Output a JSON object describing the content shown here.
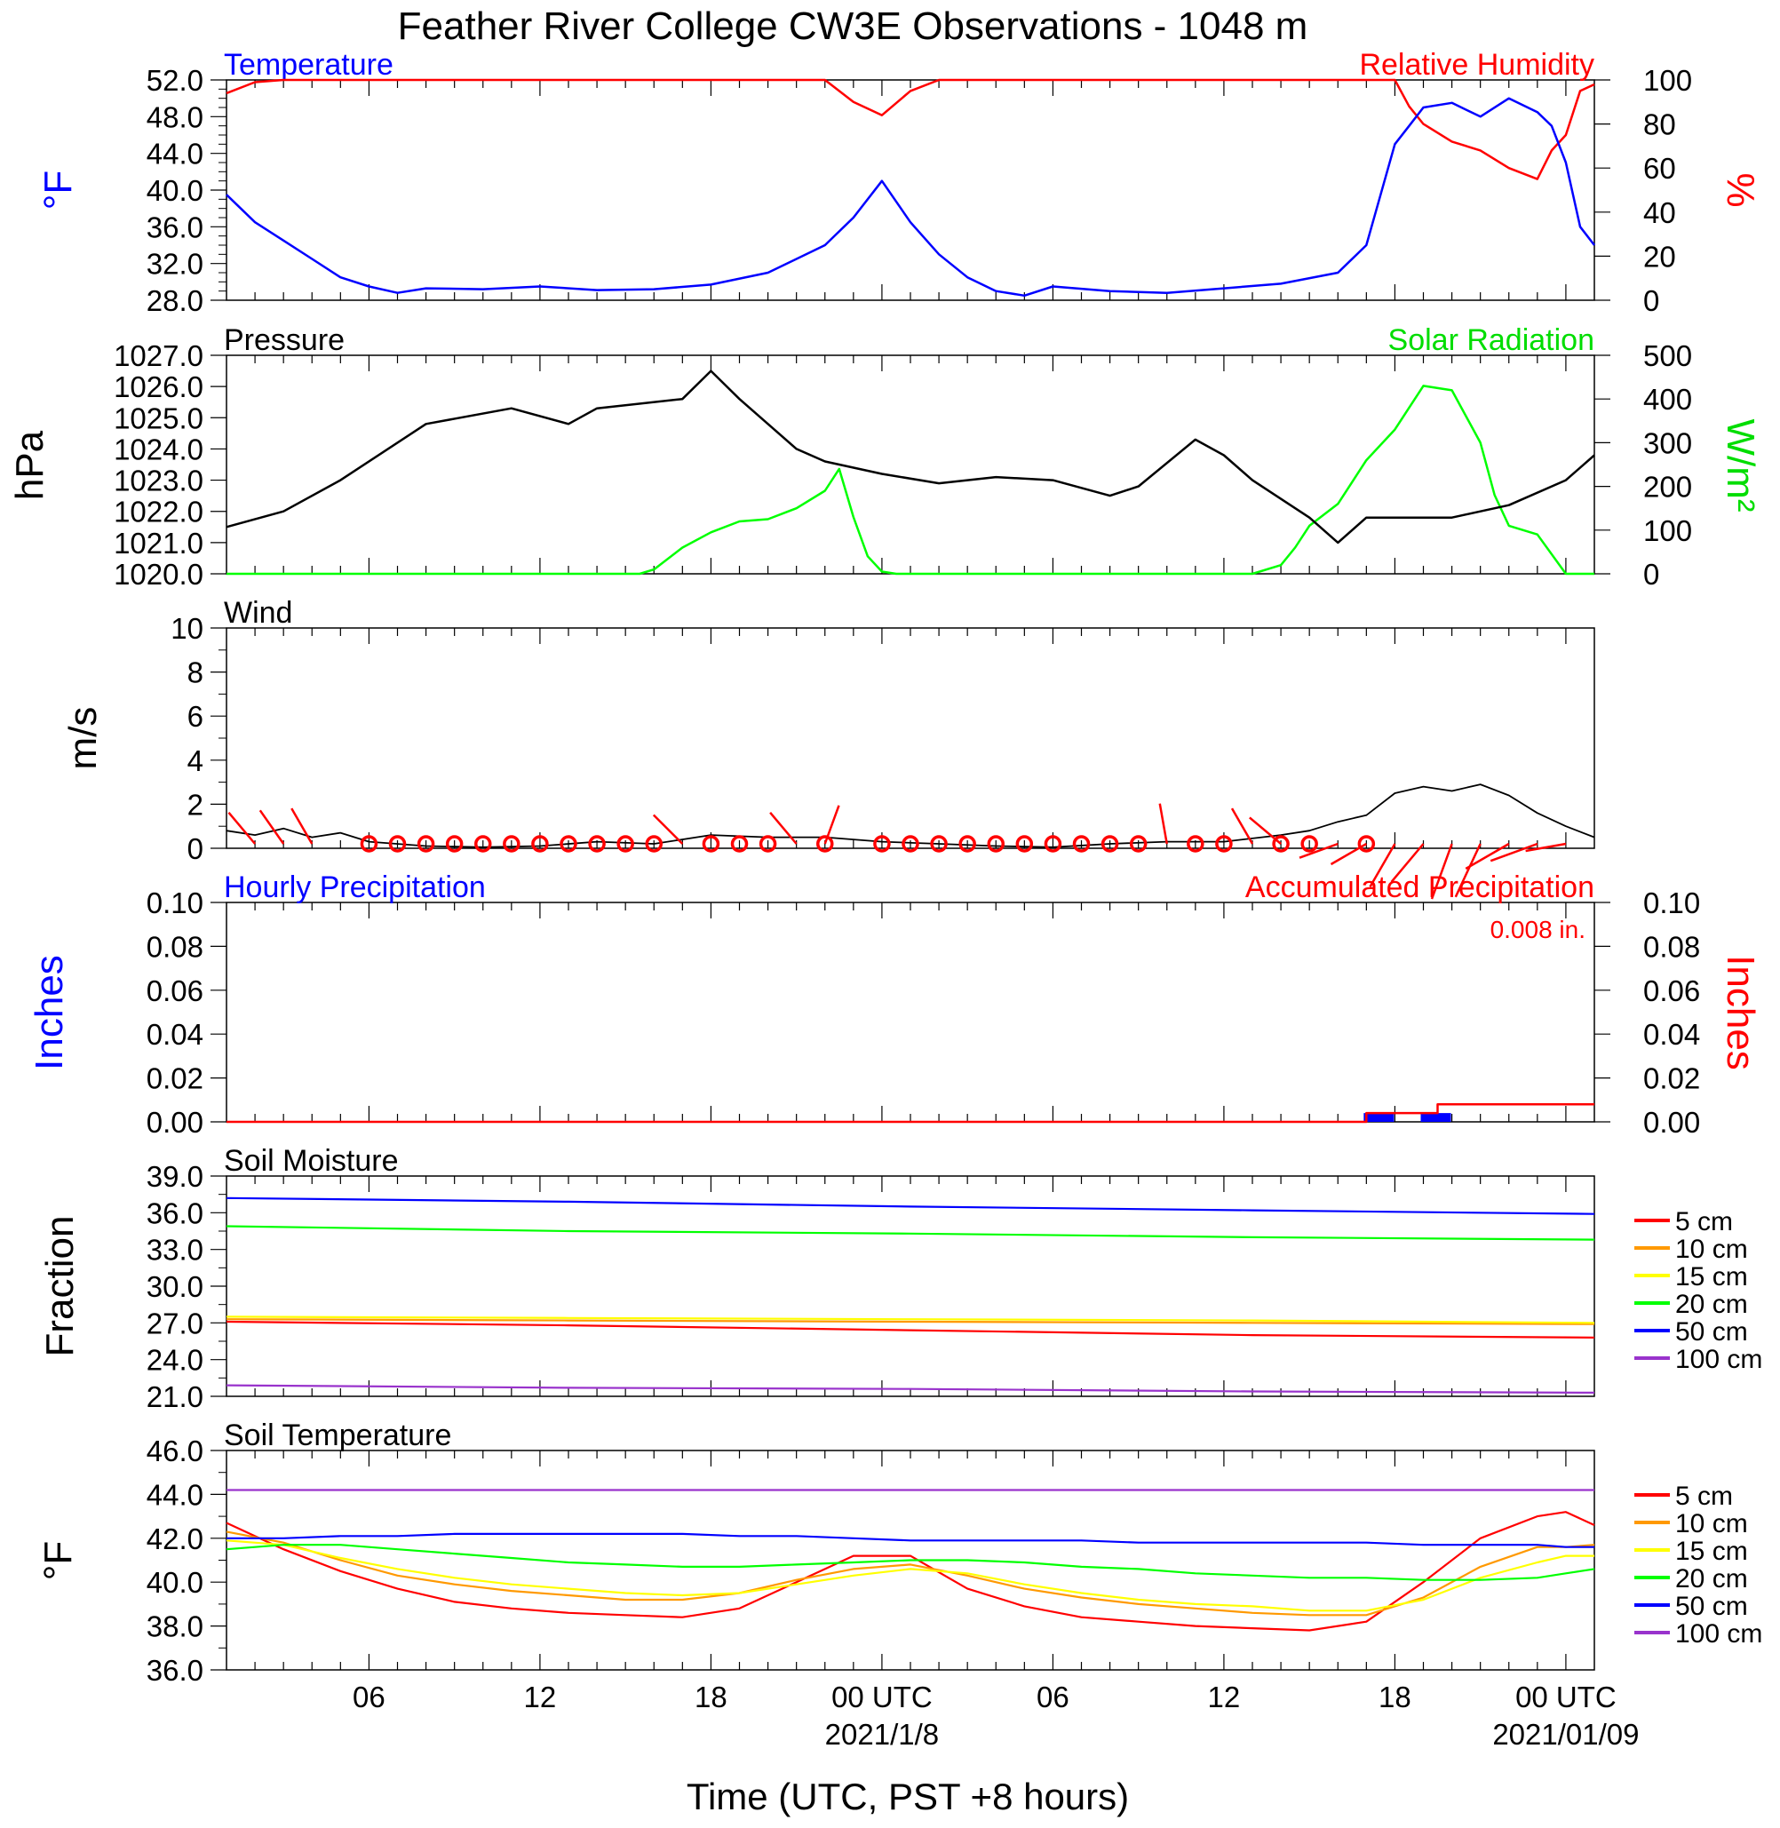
{
  "title": "Feather River College CW3E Observations - 1048 m",
  "x_axis": {
    "label": "Time (UTC, PST +8 hours)",
    "ticks": [
      "06",
      "12",
      "18",
      "00 UTC",
      "06",
      "12",
      "18",
      "00 UTC"
    ],
    "dates": [
      "2021/1/8",
      "2021/01/09"
    ]
  },
  "chart_data": [
    {
      "type": "line",
      "name_left": "Temperature",
      "name_right": "Relative Humidity",
      "ylabel_left": "°F",
      "ylabel_right": "%",
      "ylim_left": [
        28,
        52
      ],
      "ylim_right": [
        0,
        100
      ],
      "yticks_left": [
        "28.0",
        "32.0",
        "36.0",
        "40.0",
        "44.0",
        "48.0",
        "52.0"
      ],
      "yticks_right": [
        "0",
        "20",
        "40",
        "60",
        "80",
        "100"
      ],
      "x_hours": [
        1,
        2,
        3,
        4,
        5,
        6,
        7,
        8,
        10,
        12,
        14,
        16,
        18,
        20,
        22,
        23,
        24,
        25,
        26,
        27,
        28,
        29,
        30,
        32,
        34,
        36,
        38,
        40,
        41,
        42,
        42.5,
        43,
        44,
        45,
        46,
        47,
        47.5,
        48,
        48.5,
        49
      ],
      "series": [
        {
          "name": "Temperature",
          "color": "#0000ff",
          "axis": "left",
          "values": [
            39.5,
            36.5,
            34.5,
            32.5,
            30.5,
            29.5,
            28.8,
            29.3,
            29.2,
            29.5,
            29.1,
            29.2,
            29.7,
            31.0,
            34.0,
            37.0,
            41.0,
            36.5,
            33.0,
            30.5,
            29.0,
            28.5,
            29.5,
            29.0,
            28.8,
            29.3,
            29.8,
            31.0,
            34.0,
            45.0,
            47.0,
            49.0,
            49.5,
            48.0,
            50.0,
            48.5,
            47.0,
            43.0,
            36.0,
            34.0
          ]
        },
        {
          "name": "Relative Humidity",
          "color": "#ff0000",
          "axis": "right",
          "values": [
            94,
            99,
            100,
            100,
            100,
            100,
            100,
            100,
            100,
            100,
            100,
            100,
            100,
            100,
            100,
            90,
            84,
            95,
            100,
            100,
            100,
            100,
            100,
            100,
            100,
            100,
            100,
            100,
            100,
            100,
            88,
            80,
            72,
            68,
            60,
            55,
            68,
            75,
            95,
            98
          ]
        }
      ]
    },
    {
      "type": "line",
      "name_left": "Pressure",
      "name_right": "Solar Radiation",
      "ylabel_left": "hPa",
      "ylabel_right": "W/m²",
      "ylim_left": [
        1020,
        1027
      ],
      "ylim_right": [
        0,
        500
      ],
      "yticks_left": [
        "1020.0",
        "1021.0",
        "1022.0",
        "1023.0",
        "1024.0",
        "1025.0",
        "1026.0",
        "1027.0"
      ],
      "yticks_right": [
        "0",
        "100",
        "200",
        "300",
        "400",
        "500"
      ],
      "x_hours": [
        1,
        3,
        5,
        8,
        11,
        13,
        14,
        17,
        18,
        19,
        20,
        21,
        22,
        24,
        26,
        28,
        30,
        32,
        33,
        35,
        36,
        37,
        39,
        40,
        41,
        42,
        44,
        46,
        48,
        49
      ],
      "series": [
        {
          "name": "Pressure",
          "color": "#000000",
          "axis": "left",
          "values": [
            1021.5,
            1022.0,
            1023.0,
            1024.8,
            1025.3,
            1024.8,
            1025.3,
            1025.6,
            1026.5,
            1025.6,
            1024.8,
            1024.0,
            1023.6,
            1023.2,
            1022.9,
            1023.1,
            1023.0,
            1022.5,
            1022.8,
            1024.3,
            1023.8,
            1023.0,
            1021.8,
            1021.0,
            1021.8,
            1021.8,
            1021.8,
            1022.2,
            1023.0,
            1023.8
          ]
        },
        {
          "name": "Solar Radiation",
          "color": "#00ff00",
          "axis": "right",
          "x_hours": [
            1,
            15.5,
            16,
            17,
            18,
            19,
            20,
            21,
            22,
            22.5,
            23,
            23.5,
            24,
            24.5,
            37,
            38,
            38.5,
            39,
            40,
            41,
            42,
            43,
            44,
            45,
            45.5,
            46,
            47,
            48,
            49
          ],
          "values": [
            0,
            0,
            10,
            60,
            95,
            120,
            125,
            150,
            190,
            240,
            130,
            40,
            5,
            0,
            0,
            20,
            60,
            110,
            160,
            260,
            330,
            430,
            420,
            300,
            180,
            110,
            90,
            0,
            0
          ]
        }
      ]
    },
    {
      "type": "line",
      "name": "Wind",
      "ylabel": "m/s",
      "ylim": [
        0,
        10
      ],
      "yticks": [
        "0",
        "2",
        "4",
        "6",
        "8",
        "10"
      ],
      "x_hours": [
        1,
        2,
        3,
        4,
        5,
        6,
        8,
        10,
        12,
        14,
        16,
        18,
        20,
        22,
        24,
        26,
        28,
        30,
        32,
        34,
        36,
        38,
        39,
        40,
        41,
        42,
        43,
        44,
        45,
        46,
        47,
        48,
        49
      ],
      "series": [
        {
          "name": "Wind Speed",
          "color": "#000000",
          "values": [
            0.8,
            0.6,
            0.9,
            0.5,
            0.7,
            0.3,
            0.1,
            0.05,
            0.1,
            0.3,
            0.2,
            0.6,
            0.5,
            0.5,
            0.3,
            0.2,
            0.1,
            0.05,
            0.2,
            0.3,
            0.3,
            0.6,
            0.8,
            1.2,
            1.5,
            2.5,
            2.8,
            2.6,
            2.9,
            2.4,
            1.6,
            1.0,
            0.5
          ]
        }
      ],
      "barbs": {
        "color": "#ff0000",
        "calm_hours": [
          6,
          7,
          8,
          9,
          10,
          11,
          12,
          13,
          14,
          15,
          16,
          18,
          19,
          20,
          22,
          24,
          25,
          26,
          27,
          28,
          29,
          30,
          31,
          32,
          33,
          35,
          36,
          38,
          39,
          41
        ],
        "staff_hours": [
          2,
          3,
          4,
          17,
          21,
          22,
          34,
          37,
          38,
          40,
          41,
          42,
          43,
          44,
          45,
          46,
          47,
          48
        ],
        "staff_speeds": [
          1,
          1,
          1,
          1,
          1,
          1,
          1,
          1,
          1,
          1,
          1,
          2,
          2,
          3,
          3,
          2,
          2,
          1
        ],
        "staff_dirs": [
          -40,
          -35,
          -30,
          -45,
          -40,
          20,
          -10,
          -30,
          -50,
          -110,
          -120,
          -150,
          -140,
          -160,
          -155,
          -120,
          -110,
          -100
        ]
      }
    },
    {
      "type": "bar",
      "name_left": "Hourly Precipitation",
      "name_right": "Accumulated Precipitation",
      "annotation": "0.008 in.",
      "ylabel_left": "Inches",
      "ylabel_right": "Inches",
      "ylim": [
        0,
        0.1
      ],
      "yticks": [
        "0.00",
        "0.02",
        "0.04",
        "0.06",
        "0.08",
        "0.10"
      ],
      "hourly": {
        "color": "#0000ff",
        "x_hours": [
          41,
          43
        ],
        "values": [
          0.004,
          0.004
        ]
      },
      "accumulated": {
        "color": "#ff0000",
        "x_hours": [
          1,
          41,
          41,
          43.5,
          43.5,
          49
        ],
        "values": [
          0,
          0,
          0.004,
          0.004,
          0.008,
          0.008
        ]
      }
    },
    {
      "type": "line",
      "name": "Soil Moisture",
      "ylabel": "Fraction",
      "ylim": [
        21,
        39
      ],
      "yticks": [
        "21.0",
        "24.0",
        "27.0",
        "30.0",
        "33.0",
        "36.0",
        "39.0"
      ],
      "x_hours": [
        1,
        13,
        25,
        37,
        49
      ],
      "series": [
        {
          "name": "5 cm",
          "color": "#ff0000",
          "values": [
            27.1,
            26.8,
            26.4,
            26.0,
            25.8
          ]
        },
        {
          "name": "10 cm",
          "color": "#ff9900",
          "values": [
            27.3,
            27.2,
            27.1,
            27.0,
            26.9
          ]
        },
        {
          "name": "15 cm",
          "color": "#ffff00",
          "values": [
            27.5,
            27.4,
            27.3,
            27.2,
            27.0
          ]
        },
        {
          "name": "20 cm",
          "color": "#00ff00",
          "values": [
            34.9,
            34.5,
            34.3,
            34.0,
            33.8
          ]
        },
        {
          "name": "50 cm",
          "color": "#0000ff",
          "values": [
            37.2,
            36.9,
            36.5,
            36.2,
            35.9
          ]
        },
        {
          "name": "100 cm",
          "color": "#9933cc",
          "values": [
            21.9,
            21.7,
            21.6,
            21.4,
            21.3
          ]
        }
      ]
    },
    {
      "type": "line",
      "name": "Soil Temperature",
      "ylabel": "°F",
      "ylim": [
        36,
        46
      ],
      "yticks": [
        "36.0",
        "38.0",
        "40.0",
        "42.0",
        "44.0",
        "46.0"
      ],
      "x_hours": [
        1,
        3,
        5,
        7,
        9,
        11,
        13,
        15,
        17,
        19,
        21,
        23,
        25,
        27,
        29,
        31,
        33,
        35,
        37,
        39,
        41,
        43,
        45,
        47,
        48,
        49
      ],
      "series": [
        {
          "name": "5 cm",
          "color": "#ff0000",
          "values": [
            42.7,
            41.5,
            40.5,
            39.7,
            39.1,
            38.8,
            38.6,
            38.5,
            38.4,
            38.8,
            40.0,
            41.2,
            41.2,
            39.7,
            38.9,
            38.4,
            38.2,
            38.0,
            37.9,
            37.8,
            38.2,
            40.0,
            42.0,
            43.0,
            43.2,
            42.6
          ]
        },
        {
          "name": "10 cm",
          "color": "#ff9900",
          "values": [
            42.3,
            41.8,
            41.0,
            40.3,
            39.9,
            39.6,
            39.4,
            39.2,
            39.2,
            39.5,
            40.1,
            40.6,
            40.8,
            40.3,
            39.7,
            39.3,
            39.0,
            38.8,
            38.6,
            38.5,
            38.5,
            39.3,
            40.7,
            41.6,
            41.6,
            41.7
          ]
        },
        {
          "name": "15 cm",
          "color": "#ffff00",
          "values": [
            41.9,
            41.7,
            41.1,
            40.6,
            40.2,
            39.9,
            39.7,
            39.5,
            39.4,
            39.5,
            39.9,
            40.3,
            40.6,
            40.4,
            39.9,
            39.5,
            39.2,
            39.0,
            38.9,
            38.7,
            38.7,
            39.2,
            40.2,
            40.9,
            41.2,
            41.2
          ]
        },
        {
          "name": "20 cm",
          "color": "#00ff00",
          "values": [
            41.5,
            41.7,
            41.7,
            41.5,
            41.3,
            41.1,
            40.9,
            40.8,
            40.7,
            40.7,
            40.8,
            40.9,
            41.0,
            41.0,
            40.9,
            40.7,
            40.6,
            40.4,
            40.3,
            40.2,
            40.2,
            40.1,
            40.1,
            40.2,
            40.4,
            40.6
          ]
        },
        {
          "name": "50 cm",
          "color": "#0000ff",
          "values": [
            42.0,
            42.0,
            42.1,
            42.1,
            42.2,
            42.2,
            42.2,
            42.2,
            42.2,
            42.1,
            42.1,
            42.0,
            41.9,
            41.9,
            41.9,
            41.9,
            41.8,
            41.8,
            41.8,
            41.8,
            41.8,
            41.7,
            41.7,
            41.7,
            41.6,
            41.6
          ]
        },
        {
          "name": "100 cm",
          "color": "#9933cc",
          "values": [
            44.2,
            44.2,
            44.2,
            44.2,
            44.2,
            44.2,
            44.2,
            44.2,
            44.2,
            44.2,
            44.2,
            44.2,
            44.2,
            44.2,
            44.2,
            44.2,
            44.2,
            44.2,
            44.2,
            44.2,
            44.2,
            44.2,
            44.2,
            44.2,
            44.2,
            44.2
          ]
        }
      ]
    }
  ]
}
